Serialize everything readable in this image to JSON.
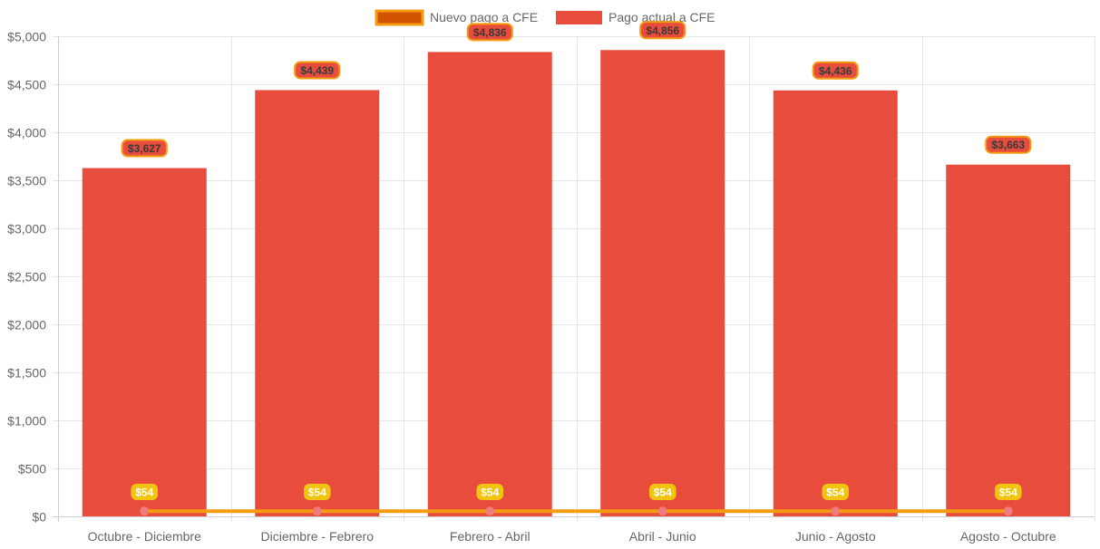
{
  "chart_data": {
    "type": "bar",
    "categories": [
      "Octubre - Diciembre",
      "Diciembre - Febrero",
      "Febrero - Abril",
      "Abril - Junio",
      "Junio - Agosto",
      "Agosto - Octubre"
    ],
    "series": [
      {
        "name": "Nuevo pago a CFE",
        "type": "line",
        "values": [
          54,
          54,
          54,
          54,
          54,
          54
        ],
        "labels": [
          "$54",
          "$54",
          "$54",
          "$54",
          "$54",
          "$54"
        ],
        "color": "#f39c12",
        "fill_color": "#d35400",
        "point_color": "#ef7c7c",
        "label_bg": "#f1c40f"
      },
      {
        "name": "Pago actual a CFE",
        "type": "bar",
        "values": [
          3627,
          4439,
          4836,
          4856,
          4436,
          3663
        ],
        "labels": [
          "$3,627",
          "$4,439",
          "$4,836",
          "$4,856",
          "$4,436",
          "$3,663"
        ],
        "color": "#e74c3c",
        "label_border": "#f39c12"
      }
    ],
    "ylim": [
      0,
      5000
    ],
    "yticks": [
      {
        "value": 0,
        "label": "$0"
      },
      {
        "value": 500,
        "label": "$500"
      },
      {
        "value": 1000,
        "label": "$1,000"
      },
      {
        "value": 1500,
        "label": "$1,500"
      },
      {
        "value": 2000,
        "label": "$2,000"
      },
      {
        "value": 2500,
        "label": "$2,500"
      },
      {
        "value": 3000,
        "label": "$3,000"
      },
      {
        "value": 3500,
        "label": "$3,500"
      },
      {
        "value": 4000,
        "label": "$4,000"
      },
      {
        "value": 4500,
        "label": "$4,500"
      },
      {
        "value": 5000,
        "label": "$5,000"
      }
    ],
    "grid": true,
    "legend_position": "top-center",
    "title": "",
    "xlabel": "",
    "ylabel": ""
  }
}
